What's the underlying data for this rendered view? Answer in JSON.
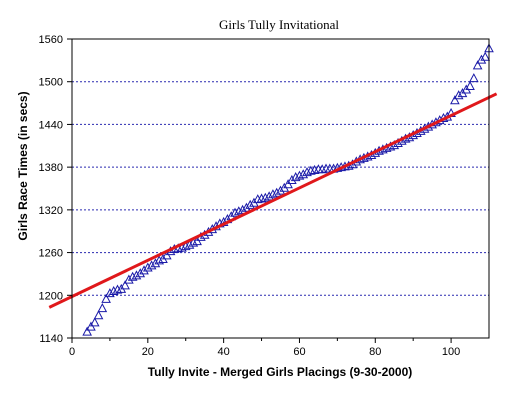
{
  "chart_data": {
    "type": "scatter",
    "title": "Girls Tully Invitational",
    "xlabel": "Tully Invite - Merged Girls Placings (9-30-2000)",
    "ylabel": "Girls Race Times (in secs)",
    "xlim": [
      0,
      110
    ],
    "ylim": [
      1140,
      1560
    ],
    "xticks": [
      "0",
      "20",
      "40",
      "60",
      "80",
      "100"
    ],
    "yticks": [
      "1140",
      "1200",
      "1260",
      "1320",
      "1380",
      "1440",
      "1500",
      "1560"
    ],
    "grid": "horizontal dotted lines at y ticks",
    "colors": {
      "markers": "#1a1aa8",
      "fit_line": "#e0181b",
      "grid": "#2a2ab0",
      "frame": "#000000"
    },
    "series": [
      {
        "marker": "triangle-open",
        "points": [
          [
            4,
            1149
          ],
          [
            5,
            1156
          ],
          [
            6,
            1162
          ],
          [
            7,
            1172
          ],
          [
            8,
            1182
          ],
          [
            9,
            1195
          ],
          [
            10,
            1203
          ],
          [
            11,
            1206
          ],
          [
            12,
            1208
          ],
          [
            13,
            1209
          ],
          [
            14,
            1214
          ],
          [
            15,
            1222
          ],
          [
            16,
            1226
          ],
          [
            17,
            1228
          ],
          [
            18,
            1231
          ],
          [
            19,
            1235
          ],
          [
            20,
            1239
          ],
          [
            21,
            1242
          ],
          [
            22,
            1245
          ],
          [
            23,
            1249
          ],
          [
            24,
            1251
          ],
          [
            25,
            1256
          ],
          [
            26,
            1262
          ],
          [
            27,
            1265
          ],
          [
            28,
            1266
          ],
          [
            29,
            1267
          ],
          [
            30,
            1269
          ],
          [
            31,
            1271
          ],
          [
            32,
            1274
          ],
          [
            33,
            1276
          ],
          [
            34,
            1282
          ],
          [
            35,
            1285
          ],
          [
            36,
            1289
          ],
          [
            37,
            1293
          ],
          [
            38,
            1297
          ],
          [
            39,
            1301
          ],
          [
            40,
            1303
          ],
          [
            41,
            1307
          ],
          [
            42,
            1311
          ],
          [
            43,
            1316
          ],
          [
            44,
            1318
          ],
          [
            45,
            1320
          ],
          [
            46,
            1323
          ],
          [
            47,
            1327
          ],
          [
            48,
            1330
          ],
          [
            49,
            1335
          ],
          [
            50,
            1336
          ],
          [
            51,
            1337
          ],
          [
            52,
            1339
          ],
          [
            53,
            1342
          ],
          [
            54,
            1344
          ],
          [
            55,
            1347
          ],
          [
            56,
            1351
          ],
          [
            57,
            1356
          ],
          [
            58,
            1362
          ],
          [
            59,
            1366
          ],
          [
            60,
            1368
          ],
          [
            61,
            1370
          ],
          [
            62,
            1373
          ],
          [
            63,
            1375
          ],
          [
            64,
            1376
          ],
          [
            65,
            1377
          ],
          [
            66,
            1377
          ],
          [
            67,
            1378
          ],
          [
            68,
            1378
          ],
          [
            69,
            1378
          ],
          [
            70,
            1379
          ],
          [
            71,
            1380
          ],
          [
            72,
            1381
          ],
          [
            73,
            1382
          ],
          [
            74,
            1384
          ],
          [
            75,
            1388
          ],
          [
            76,
            1391
          ],
          [
            77,
            1393
          ],
          [
            78,
            1395
          ],
          [
            79,
            1397
          ],
          [
            80,
            1400
          ],
          [
            81,
            1403
          ],
          [
            82,
            1405
          ],
          [
            83,
            1407
          ],
          [
            84,
            1409
          ],
          [
            85,
            1411
          ],
          [
            86,
            1414
          ],
          [
            87,
            1417
          ],
          [
            88,
            1420
          ],
          [
            89,
            1422
          ],
          [
            90,
            1425
          ],
          [
            91,
            1428
          ],
          [
            92,
            1431
          ],
          [
            93,
            1434
          ],
          [
            94,
            1437
          ],
          [
            95,
            1440
          ],
          [
            96,
            1443
          ],
          [
            97,
            1446
          ],
          [
            98,
            1449
          ],
          [
            99,
            1451
          ],
          [
            100,
            1456
          ],
          [
            101,
            1474
          ],
          [
            102,
            1481
          ],
          [
            103,
            1484
          ],
          [
            104,
            1489
          ],
          [
            105,
            1494
          ],
          [
            106,
            1505
          ],
          [
            107,
            1523
          ],
          [
            108,
            1531
          ],
          [
            109,
            1535
          ],
          [
            110,
            1547
          ]
        ]
      }
    ],
    "fit_line": {
      "type": "line",
      "from": [
        -6,
        1183
      ],
      "to": [
        112,
        1483
      ]
    }
  }
}
